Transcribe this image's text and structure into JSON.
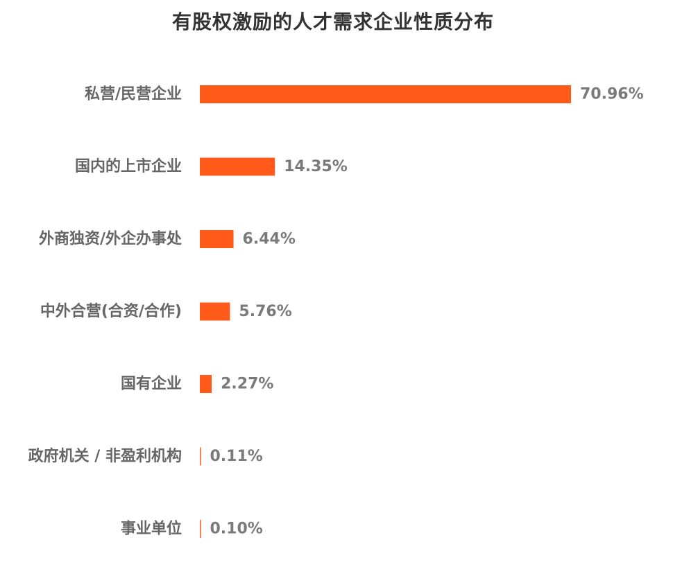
{
  "chart_data": {
    "type": "bar",
    "orientation": "horizontal",
    "title": "有股权激励的人才需求企业性质分布",
    "categories": [
      "私营/民营企业",
      "国内的上市企业",
      "外商独资/外企办事处",
      "中外合营(合资/合作)",
      "国有企业",
      "政府机关 / 非盈利机构",
      "事业单位"
    ],
    "values": [
      70.96,
      14.35,
      6.44,
      5.76,
      2.27,
      0.11,
      0.1
    ],
    "value_labels": [
      "70.96%",
      "14.35%",
      "6.44%",
      "5.76%",
      "2.27%",
      "0.11%",
      "0.10%"
    ],
    "bar_color": "#ff5a1a",
    "xlim": [
      0,
      70.96
    ],
    "grid": false,
    "legend": "none"
  }
}
